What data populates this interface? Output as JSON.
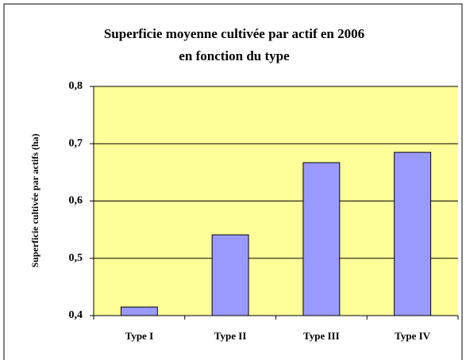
{
  "chart_data": {
    "type": "bar",
    "title": [
      "Superficie moyenne cultivée par actif en 2006",
      "en fonction du type"
    ],
    "y_label": "Superficie cultivée par actifs (ha)",
    "categories": [
      "Type I",
      "Type II",
      "Type III",
      "Type IV"
    ],
    "values": [
      0.415,
      0.541,
      0.667,
      0.685
    ],
    "color": "#9999ff",
    "plot_background": "#ffff99",
    "ylim": [
      0.4,
      0.8
    ],
    "yticks": [
      {
        "value": 0.4,
        "label": "0,4"
      },
      {
        "value": 0.5,
        "label": "0,5"
      },
      {
        "value": 0.6,
        "label": "0,6"
      },
      {
        "value": 0.7,
        "label": "0,7"
      },
      {
        "value": 0.8,
        "label": "0,8"
      }
    ],
    "grid": true
  }
}
